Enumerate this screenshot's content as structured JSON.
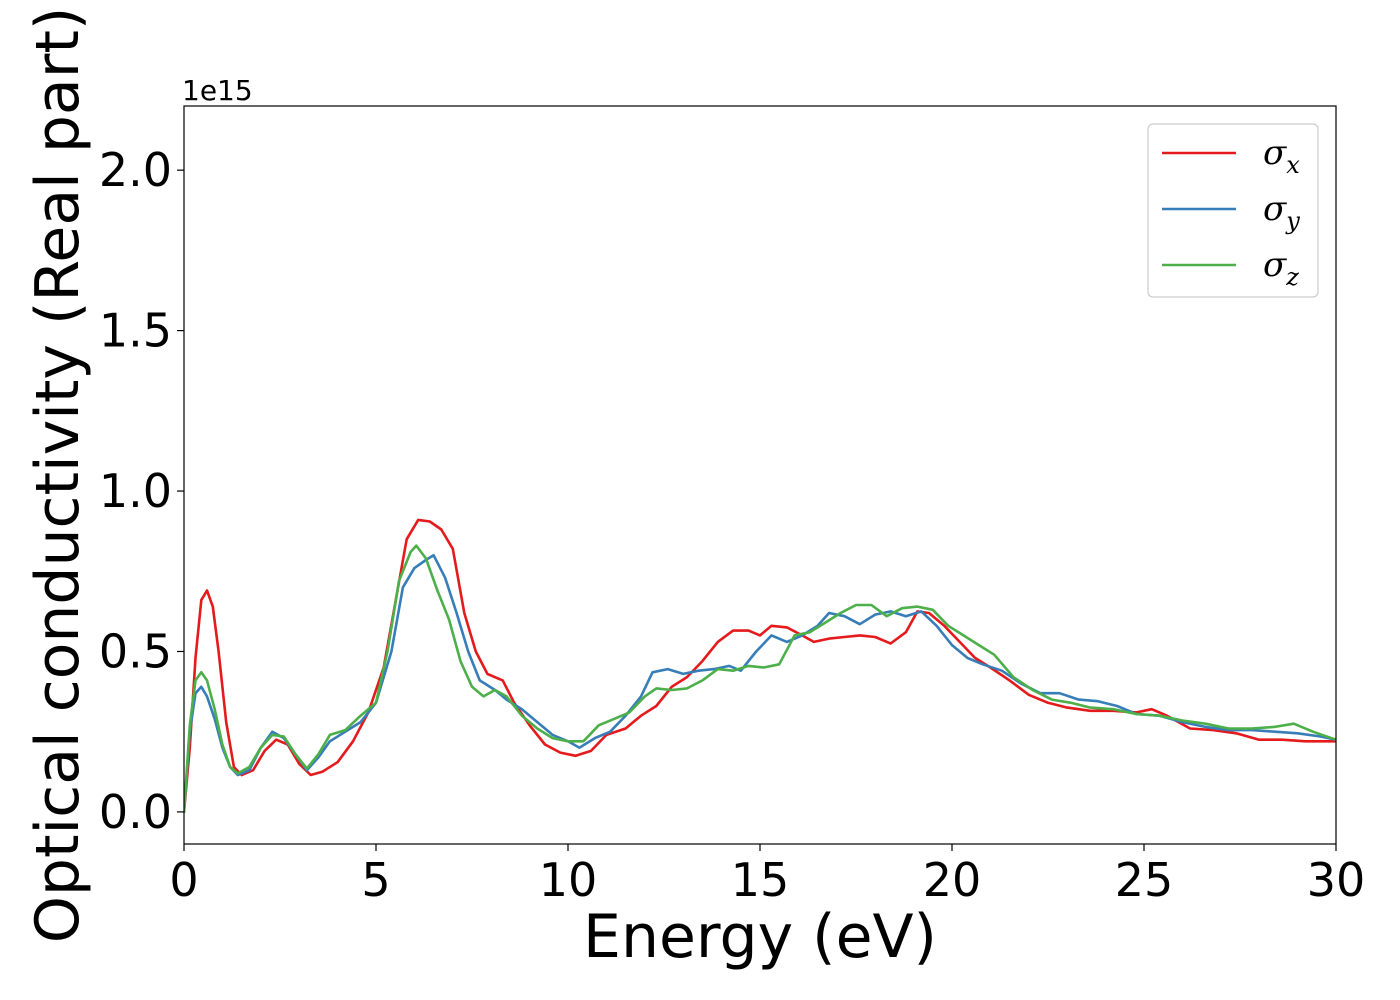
{
  "chart_data": {
    "type": "line",
    "xlabel": "Energy (eV)",
    "ylabel": "Optical conductivity (Real part)",
    "y_offset_text": "1e15",
    "xlim": [
      0,
      30
    ],
    "ylim": [
      -0.1,
      2.2
    ],
    "x_ticks": [
      0,
      5,
      10,
      15,
      20,
      25,
      30
    ],
    "x_tick_labels": [
      "0",
      "5",
      "10",
      "15",
      "20",
      "25",
      "30"
    ],
    "y_ticks": [
      0.0,
      0.5,
      1.0,
      1.5,
      2.0
    ],
    "y_tick_labels": [
      "0.0",
      "0.5",
      "1.0",
      "1.5",
      "2.0"
    ],
    "grid": false,
    "legend_position": "top-right",
    "series": [
      {
        "name": "σx",
        "legend_base": "σ",
        "legend_sub": "x",
        "color": "#e41a1c",
        "points": [
          [
            0.0,
            0.0
          ],
          [
            0.15,
            0.2
          ],
          [
            0.3,
            0.48
          ],
          [
            0.45,
            0.66
          ],
          [
            0.6,
            0.69
          ],
          [
            0.75,
            0.64
          ],
          [
            0.9,
            0.5
          ],
          [
            1.1,
            0.28
          ],
          [
            1.3,
            0.14
          ],
          [
            1.5,
            0.115
          ],
          [
            1.8,
            0.13
          ],
          [
            2.1,
            0.19
          ],
          [
            2.4,
            0.225
          ],
          [
            2.7,
            0.21
          ],
          [
            3.0,
            0.15
          ],
          [
            3.3,
            0.115
          ],
          [
            3.6,
            0.125
          ],
          [
            4.0,
            0.155
          ],
          [
            4.4,
            0.22
          ],
          [
            4.8,
            0.31
          ],
          [
            5.2,
            0.45
          ],
          [
            5.5,
            0.65
          ],
          [
            5.8,
            0.85
          ],
          [
            6.1,
            0.91
          ],
          [
            6.4,
            0.905
          ],
          [
            6.7,
            0.88
          ],
          [
            7.0,
            0.82
          ],
          [
            7.3,
            0.62
          ],
          [
            7.6,
            0.5
          ],
          [
            7.9,
            0.43
          ],
          [
            8.3,
            0.41
          ],
          [
            8.6,
            0.34
          ],
          [
            9.0,
            0.27
          ],
          [
            9.4,
            0.21
          ],
          [
            9.8,
            0.185
          ],
          [
            10.2,
            0.175
          ],
          [
            10.6,
            0.19
          ],
          [
            11.0,
            0.24
          ],
          [
            11.5,
            0.26
          ],
          [
            11.9,
            0.3
          ],
          [
            12.3,
            0.33
          ],
          [
            12.7,
            0.39
          ],
          [
            13.1,
            0.42
          ],
          [
            13.5,
            0.47
          ],
          [
            13.9,
            0.53
          ],
          [
            14.3,
            0.565
          ],
          [
            14.7,
            0.565
          ],
          [
            15.0,
            0.55
          ],
          [
            15.3,
            0.58
          ],
          [
            15.7,
            0.575
          ],
          [
            16.1,
            0.55
          ],
          [
            16.4,
            0.53
          ],
          [
            16.8,
            0.54
          ],
          [
            17.2,
            0.545
          ],
          [
            17.6,
            0.55
          ],
          [
            18.0,
            0.545
          ],
          [
            18.4,
            0.525
          ],
          [
            18.8,
            0.56
          ],
          [
            19.1,
            0.625
          ],
          [
            19.4,
            0.62
          ],
          [
            19.8,
            0.58
          ],
          [
            20.2,
            0.53
          ],
          [
            20.6,
            0.48
          ],
          [
            21.0,
            0.45
          ],
          [
            21.5,
            0.41
          ],
          [
            22.0,
            0.365
          ],
          [
            22.5,
            0.34
          ],
          [
            23.0,
            0.325
          ],
          [
            23.6,
            0.315
          ],
          [
            24.2,
            0.315
          ],
          [
            24.8,
            0.31
          ],
          [
            25.2,
            0.32
          ],
          [
            25.6,
            0.3
          ],
          [
            26.2,
            0.26
          ],
          [
            26.8,
            0.255
          ],
          [
            27.4,
            0.245
          ],
          [
            28.0,
            0.225
          ],
          [
            28.6,
            0.225
          ],
          [
            29.2,
            0.22
          ],
          [
            30.0,
            0.22
          ]
        ]
      },
      {
        "name": "σy",
        "legend_base": "σ",
        "legend_sub": "y",
        "color": "#377eb8",
        "points": [
          [
            0.0,
            0.0
          ],
          [
            0.15,
            0.25
          ],
          [
            0.3,
            0.37
          ],
          [
            0.45,
            0.39
          ],
          [
            0.6,
            0.36
          ],
          [
            0.8,
            0.29
          ],
          [
            1.0,
            0.2
          ],
          [
            1.2,
            0.14
          ],
          [
            1.4,
            0.115
          ],
          [
            1.7,
            0.13
          ],
          [
            2.0,
            0.2
          ],
          [
            2.3,
            0.25
          ],
          [
            2.6,
            0.23
          ],
          [
            2.9,
            0.18
          ],
          [
            3.2,
            0.13
          ],
          [
            3.5,
            0.17
          ],
          [
            3.8,
            0.22
          ],
          [
            4.2,
            0.25
          ],
          [
            4.6,
            0.28
          ],
          [
            5.0,
            0.34
          ],
          [
            5.4,
            0.5
          ],
          [
            5.7,
            0.7
          ],
          [
            6.0,
            0.76
          ],
          [
            6.3,
            0.785
          ],
          [
            6.5,
            0.8
          ],
          [
            6.8,
            0.73
          ],
          [
            7.1,
            0.62
          ],
          [
            7.4,
            0.5
          ],
          [
            7.7,
            0.41
          ],
          [
            8.1,
            0.38
          ],
          [
            8.4,
            0.35
          ],
          [
            8.8,
            0.32
          ],
          [
            9.2,
            0.28
          ],
          [
            9.6,
            0.24
          ],
          [
            10.0,
            0.22
          ],
          [
            10.3,
            0.2
          ],
          [
            10.7,
            0.23
          ],
          [
            11.1,
            0.25
          ],
          [
            11.5,
            0.3
          ],
          [
            11.9,
            0.36
          ],
          [
            12.2,
            0.435
          ],
          [
            12.6,
            0.445
          ],
          [
            13.0,
            0.43
          ],
          [
            13.4,
            0.44
          ],
          [
            13.8,
            0.445
          ],
          [
            14.2,
            0.455
          ],
          [
            14.5,
            0.44
          ],
          [
            14.9,
            0.5
          ],
          [
            15.3,
            0.55
          ],
          [
            15.7,
            0.53
          ],
          [
            16.1,
            0.55
          ],
          [
            16.5,
            0.58
          ],
          [
            16.8,
            0.62
          ],
          [
            17.2,
            0.61
          ],
          [
            17.6,
            0.585
          ],
          [
            18.0,
            0.615
          ],
          [
            18.4,
            0.625
          ],
          [
            18.8,
            0.61
          ],
          [
            19.2,
            0.625
          ],
          [
            19.6,
            0.58
          ],
          [
            20.0,
            0.52
          ],
          [
            20.4,
            0.48
          ],
          [
            20.8,
            0.46
          ],
          [
            21.3,
            0.44
          ],
          [
            21.8,
            0.4
          ],
          [
            22.3,
            0.37
          ],
          [
            22.8,
            0.37
          ],
          [
            23.3,
            0.35
          ],
          [
            23.8,
            0.345
          ],
          [
            24.3,
            0.33
          ],
          [
            24.8,
            0.305
          ],
          [
            25.4,
            0.3
          ],
          [
            26.0,
            0.28
          ],
          [
            26.6,
            0.265
          ],
          [
            27.2,
            0.255
          ],
          [
            27.8,
            0.255
          ],
          [
            28.4,
            0.25
          ],
          [
            29.0,
            0.245
          ],
          [
            29.6,
            0.235
          ],
          [
            30.0,
            0.225
          ]
        ]
      },
      {
        "name": "σz",
        "legend_base": "σ",
        "legend_sub": "z",
        "color": "#4daf4a",
        "points": [
          [
            0.0,
            0.0
          ],
          [
            0.15,
            0.27
          ],
          [
            0.3,
            0.41
          ],
          [
            0.45,
            0.435
          ],
          [
            0.6,
            0.41
          ],
          [
            0.8,
            0.32
          ],
          [
            1.0,
            0.21
          ],
          [
            1.2,
            0.14
          ],
          [
            1.4,
            0.12
          ],
          [
            1.7,
            0.14
          ],
          [
            2.0,
            0.2
          ],
          [
            2.3,
            0.24
          ],
          [
            2.6,
            0.235
          ],
          [
            2.9,
            0.18
          ],
          [
            3.2,
            0.135
          ],
          [
            3.5,
            0.18
          ],
          [
            3.8,
            0.24
          ],
          [
            4.2,
            0.255
          ],
          [
            4.6,
            0.3
          ],
          [
            5.0,
            0.34
          ],
          [
            5.3,
            0.5
          ],
          [
            5.6,
            0.72
          ],
          [
            5.9,
            0.81
          ],
          [
            6.05,
            0.83
          ],
          [
            6.3,
            0.79
          ],
          [
            6.6,
            0.69
          ],
          [
            6.9,
            0.6
          ],
          [
            7.2,
            0.47
          ],
          [
            7.5,
            0.39
          ],
          [
            7.8,
            0.36
          ],
          [
            8.1,
            0.38
          ],
          [
            8.4,
            0.36
          ],
          [
            8.8,
            0.3
          ],
          [
            9.2,
            0.26
          ],
          [
            9.6,
            0.23
          ],
          [
            10.0,
            0.22
          ],
          [
            10.4,
            0.22
          ],
          [
            10.8,
            0.27
          ],
          [
            11.2,
            0.29
          ],
          [
            11.6,
            0.31
          ],
          [
            12.0,
            0.36
          ],
          [
            12.3,
            0.385
          ],
          [
            12.7,
            0.38
          ],
          [
            13.1,
            0.385
          ],
          [
            13.5,
            0.41
          ],
          [
            13.9,
            0.445
          ],
          [
            14.3,
            0.44
          ],
          [
            14.7,
            0.455
          ],
          [
            15.1,
            0.45
          ],
          [
            15.5,
            0.46
          ],
          [
            15.9,
            0.55
          ],
          [
            16.3,
            0.56
          ],
          [
            16.7,
            0.59
          ],
          [
            17.1,
            0.62
          ],
          [
            17.5,
            0.645
          ],
          [
            17.9,
            0.645
          ],
          [
            18.3,
            0.61
          ],
          [
            18.7,
            0.635
          ],
          [
            19.1,
            0.64
          ],
          [
            19.5,
            0.63
          ],
          [
            19.9,
            0.58
          ],
          [
            20.3,
            0.55
          ],
          [
            20.7,
            0.52
          ],
          [
            21.1,
            0.49
          ],
          [
            21.6,
            0.42
          ],
          [
            22.1,
            0.38
          ],
          [
            22.6,
            0.35
          ],
          [
            23.1,
            0.34
          ],
          [
            23.6,
            0.325
          ],
          [
            24.2,
            0.32
          ],
          [
            24.8,
            0.305
          ],
          [
            25.4,
            0.3
          ],
          [
            26.0,
            0.285
          ],
          [
            26.6,
            0.275
          ],
          [
            27.2,
            0.26
          ],
          [
            27.8,
            0.26
          ],
          [
            28.4,
            0.265
          ],
          [
            28.9,
            0.275
          ],
          [
            29.4,
            0.25
          ],
          [
            30.0,
            0.225
          ]
        ]
      }
    ]
  }
}
